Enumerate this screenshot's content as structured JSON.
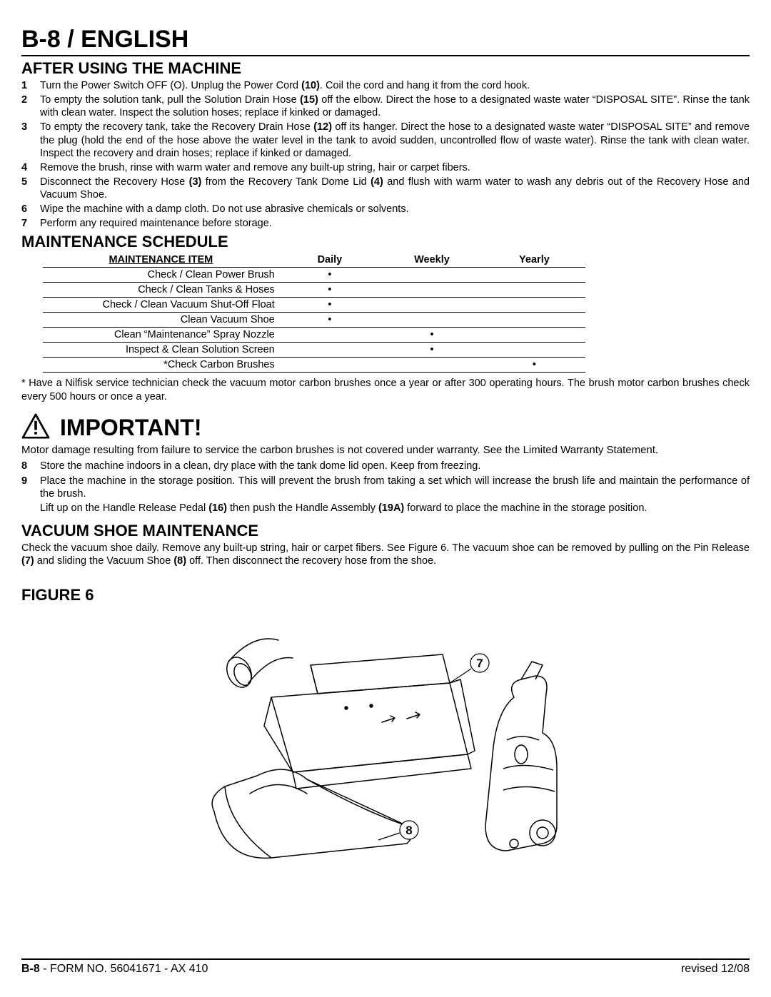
{
  "page_title": "B-8 / ENGLISH",
  "section_after_using": {
    "heading": "AFTER USING THE MACHINE",
    "steps": [
      {
        "n": "1",
        "parts": [
          {
            "t": "Turn the Power Switch OFF (O).  Unplug the Power Cord "
          },
          {
            "t": "(10)",
            "b": true
          },
          {
            "t": ".  Coil the cord and hang it from the cord hook."
          }
        ]
      },
      {
        "n": "2",
        "parts": [
          {
            "t": "To empty the solution tank, pull the Solution Drain Hose "
          },
          {
            "t": "(15)",
            "b": true
          },
          {
            "t": " off the elbow.  Direct the hose to a designated waste water “DISPOSAL SITE”.  Rinse the tank with clean water.  Inspect the solution hoses; replace if kinked or damaged."
          }
        ]
      },
      {
        "n": "3",
        "parts": [
          {
            "t": "To empty the recovery tank, take the Recovery Drain Hose "
          },
          {
            "t": "(12)",
            "b": true
          },
          {
            "t": " off its hanger.  Direct the hose to a designated waste water “DISPOSAL SITE” and remove the plug (hold the end of the hose above the water level in the tank to avoid sudden, uncontrolled flow of waste water).  Rinse the tank with clean water.  Inspect the recovery and drain hoses; replace if kinked or damaged."
          }
        ]
      },
      {
        "n": "4",
        "parts": [
          {
            "t": "Remove the brush, rinse with warm water and remove any built-up string, hair or carpet fibers."
          }
        ]
      },
      {
        "n": "5",
        "parts": [
          {
            "t": "Disconnect the Recovery Hose "
          },
          {
            "t": "(3)",
            "b": true
          },
          {
            "t": " from the Recovery Tank Dome Lid "
          },
          {
            "t": "(4)",
            "b": true
          },
          {
            "t": " and flush with warm water to wash any debris out of the Recovery Hose and Vacuum Shoe."
          }
        ]
      },
      {
        "n": "6",
        "parts": [
          {
            "t": "Wipe the machine with a damp cloth.  Do not use abrasive chemicals or solvents."
          }
        ]
      },
      {
        "n": "7",
        "parts": [
          {
            "t": "Perform any required maintenance before storage."
          }
        ]
      }
    ]
  },
  "maintenance": {
    "heading": "MAINTENANCE SCHEDULE",
    "col_item": "MAINTENANCE ITEM",
    "col_daily": "Daily",
    "col_weekly": "Weekly",
    "col_yearly": "Yearly",
    "rows": [
      {
        "item": "Check / Clean Power Brush",
        "daily": "•",
        "weekly": "",
        "yearly": ""
      },
      {
        "item": "Check / Clean Tanks & Hoses",
        "daily": "•",
        "weekly": "",
        "yearly": ""
      },
      {
        "item": "Check / Clean Vacuum Shut-Off Float",
        "daily": "•",
        "weekly": "",
        "yearly": ""
      },
      {
        "item": "Clean Vacuum Shoe",
        "daily": "•",
        "weekly": "",
        "yearly": ""
      },
      {
        "item": "Clean “Maintenance” Spray Nozzle",
        "daily": "",
        "weekly": "•",
        "yearly": ""
      },
      {
        "item": "Inspect & Clean Solution Screen",
        "daily": "",
        "weekly": "•",
        "yearly": ""
      },
      {
        "item": "*Check Carbon Brushes",
        "daily": "",
        "weekly": "",
        "yearly": "•"
      }
    ],
    "footnote": "* Have a Nilfisk service technician check the vacuum motor carbon brushes once a year or after 300 operating hours.  The brush motor carbon brushes check every 500 hours or once a year."
  },
  "important": {
    "label": "IMPORTANT!",
    "para": "Motor damage resulting from failure to service the carbon brushes is not covered under warranty.  See the Limited Warranty Statement.",
    "steps": [
      {
        "n": "8",
        "parts": [
          {
            "t": "Store the machine indoors in a clean, dry place with the tank dome lid open.  Keep from freezing."
          }
        ]
      },
      {
        "n": "9",
        "parts": [
          {
            "t": "Place the machine in the storage position.  This will prevent the brush from taking a set which will increase the brush life and maintain the performance of the brush."
          }
        ]
      }
    ],
    "tail_parts": [
      {
        "t": "Lift up on the Handle Release Pedal "
      },
      {
        "t": "(16)",
        "b": true
      },
      {
        "t": " then push the Handle Assembly "
      },
      {
        "t": "(19A)",
        "b": true
      },
      {
        "t": " forward to place the machine in the storage position."
      }
    ]
  },
  "vacuum_shoe": {
    "heading": "VACUUM SHOE MAINTENANCE",
    "para_parts": [
      {
        "t": "Check the vacuum shoe daily.  Remove any built-up string, hair or carpet fibers.  See Figure 6.  The vacuum shoe can be removed by pulling on the Pin Release "
      },
      {
        "t": "(7)",
        "b": true
      },
      {
        "t": " and sliding the Vacuum Shoe "
      },
      {
        "t": "(8)",
        "b": true
      },
      {
        "t": " off.  Then disconnect the recovery hose from the shoe."
      }
    ]
  },
  "figure": {
    "heading": "FIGURE 6",
    "callout_7": "7",
    "callout_8": "8"
  },
  "footer": {
    "left_pg": "B-8",
    "left_rest": " - FORM NO. 56041671 - AX 410",
    "right": "revised 12/08"
  }
}
